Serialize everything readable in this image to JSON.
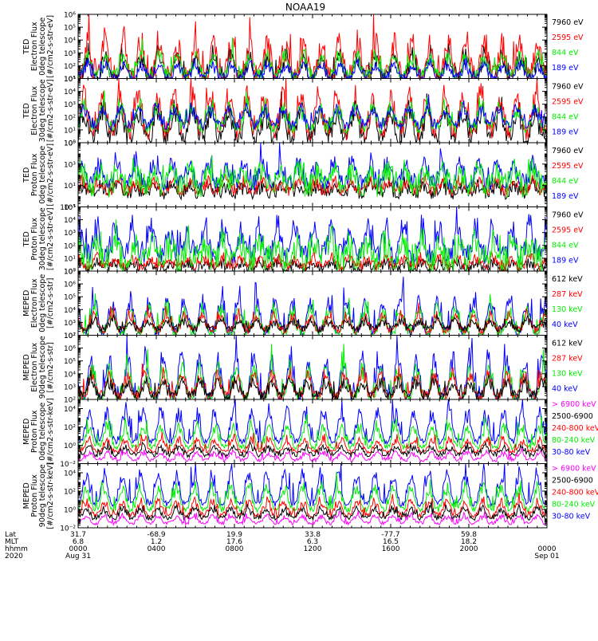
{
  "title": "NOAA19",
  "colors": {
    "black": "#000000",
    "red": "#ff0000",
    "green": "#00ee00",
    "blue": "#0000ff",
    "magenta": "#ff00ff"
  },
  "chart_data": [
    {
      "type": "line",
      "ylabel": [
        "TED",
        "Electron Flux",
        "0deg telescope",
        "[#/cm2-s-str-eV]"
      ],
      "ylog": [
        1,
        6
      ],
      "ticks": [
        {
          "e": 1,
          "label": "10¹"
        },
        {
          "e": 2,
          "label": "10²"
        },
        {
          "e": 3,
          "label": "10³"
        },
        {
          "e": 4,
          "label": "10⁴"
        },
        {
          "e": 5,
          "label": "10⁵"
        },
        {
          "e": 6,
          "label": "10⁶"
        }
      ],
      "legend": [
        {
          "text": "7960 eV",
          "color": "black"
        },
        {
          "text": "2595 eV",
          "color": "red"
        },
        {
          "text": "844 eV",
          "color": "green"
        },
        {
          "text": "189 eV",
          "color": "blue"
        }
      ],
      "series": [
        {
          "name": "7960 eV",
          "color": "black",
          "base": 1.0,
          "amp": 2.2,
          "noise": 0.6
        },
        {
          "name": "2595 eV",
          "color": "red",
          "base": 1.2,
          "amp": 3.2,
          "noise": 0.9
        },
        {
          "name": "844 eV",
          "color": "green",
          "base": 1.3,
          "amp": 1.8,
          "noise": 0.5
        },
        {
          "name": "189 eV",
          "color": "blue",
          "base": 1.1,
          "amp": 1.2,
          "noise": 0.4
        }
      ]
    },
    {
      "type": "line",
      "ylabel": [
        "TED",
        "Electron Flux",
        "30deg telescope",
        "[#/cm2-s-str-eV]"
      ],
      "ylog": [
        0,
        5
      ],
      "ticks": [
        {
          "e": 0,
          "label": "10⁰"
        },
        {
          "e": 1,
          "label": "10¹"
        },
        {
          "e": 2,
          "label": "10²"
        },
        {
          "e": 3,
          "label": "10³"
        },
        {
          "e": 4,
          "label": "10⁴"
        },
        {
          "e": 5,
          "label": "10⁵"
        }
      ],
      "legend": [
        {
          "text": "7960 eV",
          "color": "black"
        },
        {
          "text": "2595 eV",
          "color": "red"
        },
        {
          "text": "844 eV",
          "color": "green"
        },
        {
          "text": "189 eV",
          "color": "blue"
        }
      ],
      "series": [
        {
          "name": "7960 eV",
          "color": "black",
          "base": 0.4,
          "amp": 2.6,
          "noise": 0.7
        },
        {
          "name": "2595 eV",
          "color": "red",
          "base": 1.0,
          "amp": 3.3,
          "noise": 0.8
        },
        {
          "name": "844 eV",
          "color": "green",
          "base": 1.2,
          "amp": 2.0,
          "noise": 0.5
        },
        {
          "name": "189 eV",
          "color": "blue",
          "base": 1.4,
          "amp": 1.6,
          "noise": 0.4
        }
      ]
    },
    {
      "type": "line",
      "ylabel": [
        "TED",
        "Proton Flux",
        "0deg telescope",
        "[#/cm2-s-str-eV]"
      ],
      "ylog": [
        -1,
        5
      ],
      "ticks": [
        {
          "e": -1,
          "label": "10⁻¹"
        },
        {
          "e": 1,
          "label": "10¹"
        },
        {
          "e": 3,
          "label": "10³"
        },
        {
          "e": 5,
          "label": "10⁵"
        }
      ],
      "legend": [
        {
          "text": "7960 eV",
          "color": "black"
        },
        {
          "text": "2595 eV",
          "color": "red"
        },
        {
          "text": "844 eV",
          "color": "green"
        },
        {
          "text": "189 eV",
          "color": "blue"
        }
      ],
      "series": [
        {
          "name": "7960 eV",
          "color": "black",
          "base": 0.3,
          "amp": 0.8,
          "noise": 0.6
        },
        {
          "name": "2595 eV",
          "color": "red",
          "base": 0.6,
          "amp": 1.0,
          "noise": 0.6
        },
        {
          "name": "189 eV",
          "color": "blue",
          "base": 1.2,
          "amp": 2.4,
          "noise": 0.8
        },
        {
          "name": "844 eV",
          "color": "green",
          "base": 1.0,
          "amp": 1.8,
          "noise": 1.2
        }
      ]
    },
    {
      "type": "line",
      "ylabel": [
        "TED",
        "Proton Flux",
        "30deg telescope",
        "[#/cm2-s-str-eV]"
      ],
      "ylog": [
        0,
        5
      ],
      "ticks": [
        {
          "e": 0,
          "label": "10⁰"
        },
        {
          "e": 1,
          "label": "10¹"
        },
        {
          "e": 2,
          "label": "10²"
        },
        {
          "e": 3,
          "label": "10³"
        },
        {
          "e": 4,
          "label": "10⁴"
        },
        {
          "e": 5,
          "label": "10⁵"
        }
      ],
      "legend": [
        {
          "text": "7960 eV",
          "color": "black"
        },
        {
          "text": "2595 eV",
          "color": "red"
        },
        {
          "text": "844 eV",
          "color": "green"
        },
        {
          "text": "189 eV",
          "color": "blue"
        }
      ],
      "series": [
        {
          "name": "7960 eV",
          "color": "black",
          "base": 0.2,
          "amp": 0.6,
          "noise": 0.4
        },
        {
          "name": "2595 eV",
          "color": "red",
          "base": 0.4,
          "amp": 0.8,
          "noise": 0.4
        },
        {
          "name": "189 eV",
          "color": "blue",
          "base": 1.3,
          "amp": 2.6,
          "noise": 0.8
        },
        {
          "name": "844 eV",
          "color": "green",
          "base": 0.9,
          "amp": 1.6,
          "noise": 1.2
        }
      ]
    },
    {
      "type": "line",
      "ylabel": [
        "MEPED",
        "Electron Flux",
        "0deg telescope",
        "[#/cm2-s-str]"
      ],
      "ylog": [
        2,
        7
      ],
      "ticks": [
        {
          "e": 2,
          "label": "10²"
        },
        {
          "e": 3,
          "label": "10³"
        },
        {
          "e": 4,
          "label": "10⁴"
        },
        {
          "e": 5,
          "label": "10⁵"
        },
        {
          "e": 6,
          "label": "10⁶"
        },
        {
          "e": 7,
          "label": "10⁷"
        }
      ],
      "legend": [
        {
          "text": "612 keV",
          "color": "black"
        },
        {
          "text": "287 keV",
          "color": "red"
        },
        {
          "text": "130 keV",
          "color": "green"
        },
        {
          "text": "40 keV",
          "color": "blue"
        }
      ],
      "series": [
        {
          "name": "40 keV",
          "color": "blue",
          "base": 2.3,
          "amp": 3.0,
          "noise": 0.4
        },
        {
          "name": "130 keV",
          "color": "green",
          "base": 2.2,
          "amp": 2.2,
          "noise": 0.4
        },
        {
          "name": "287 keV",
          "color": "red",
          "base": 2.4,
          "amp": 1.4,
          "noise": 0.3
        },
        {
          "name": "612 keV",
          "color": "black",
          "base": 2.5,
          "amp": 0.8,
          "noise": 0.3
        }
      ]
    },
    {
      "type": "line",
      "ylabel": [
        "MEPED",
        "Electron Flux",
        "90deg telescope",
        "[#/cm2-s-str]"
      ],
      "ylog": [
        2,
        7
      ],
      "ticks": [
        {
          "e": 2,
          "label": "10²"
        },
        {
          "e": 3,
          "label": "10³"
        },
        {
          "e": 4,
          "label": "10⁴"
        },
        {
          "e": 5,
          "label": "10⁵"
        },
        {
          "e": 6,
          "label": "10⁶"
        },
        {
          "e": 7,
          "label": "10⁷"
        }
      ],
      "legend": [
        {
          "text": "612 keV",
          "color": "black"
        },
        {
          "text": "287 keV",
          "color": "red"
        },
        {
          "text": "130 keV",
          "color": "green"
        },
        {
          "text": "40 keV",
          "color": "blue"
        }
      ],
      "series": [
        {
          "name": "40 keV",
          "color": "blue",
          "base": 2.2,
          "amp": 3.6,
          "noise": 0.4
        },
        {
          "name": "130 keV",
          "color": "green",
          "base": 2.1,
          "amp": 2.8,
          "noise": 0.4
        },
        {
          "name": "287 keV",
          "color": "red",
          "base": 2.3,
          "amp": 2.0,
          "noise": 0.4
        },
        {
          "name": "612 keV",
          "color": "black",
          "base": 2.3,
          "amp": 1.3,
          "noise": 0.4
        }
      ]
    },
    {
      "type": "line",
      "ylabel": [
        "MEPED",
        "Proton Flux",
        "0deg telescope",
        "[#/cm2-s-str-keV]"
      ],
      "ylog": [
        -2,
        5
      ],
      "ticks": [
        {
          "e": -2,
          "label": "10⁻²"
        },
        {
          "e": 0,
          "label": "10⁰"
        },
        {
          "e": 2,
          "label": "10²"
        },
        {
          "e": 4,
          "label": "10⁴"
        }
      ],
      "legend": [
        {
          "text": "> 6900 keV",
          "color": "magenta"
        },
        {
          "text": "2500-6900",
          "color": "black"
        },
        {
          "text": "240-800 keV",
          "color": "red"
        },
        {
          "text": "80-240 keV",
          "color": "green"
        },
        {
          "text": "30-80 keV",
          "color": "blue"
        }
      ],
      "series": [
        {
          "name": "30-80 keV",
          "color": "blue",
          "base": 0.4,
          "amp": 4.0,
          "noise": 0.3
        },
        {
          "name": "80-240 keV",
          "color": "green",
          "base": -0.2,
          "amp": 2.8,
          "noise": 0.3
        },
        {
          "name": "240-800 keV",
          "color": "red",
          "base": -0.7,
          "amp": 1.6,
          "noise": 0.2
        },
        {
          "name": "2500-6900",
          "color": "black",
          "base": -1.0,
          "amp": 1.0,
          "noise": 0.3
        },
        {
          "name": "> 6900 keV",
          "color": "magenta",
          "base": -1.6,
          "amp": 1.0,
          "noise": 0.2
        }
      ]
    },
    {
      "type": "line",
      "ylabel": [
        "MEPED",
        "Proton Flux",
        "90deg telescope",
        "[#/cm2-s-str-keV]"
      ],
      "ylog": [
        -2,
        5
      ],
      "ticks": [
        {
          "e": -2,
          "label": "10⁻²"
        },
        {
          "e": 0,
          "label": "10⁰"
        },
        {
          "e": 2,
          "label": "10²"
        },
        {
          "e": 4,
          "label": "10⁴"
        }
      ],
      "legend": [
        {
          "text": "> 6900 keV",
          "color": "magenta"
        },
        {
          "text": "2500-6900",
          "color": "black"
        },
        {
          "text": "240-800 keV",
          "color": "red"
        },
        {
          "text": "80-240 keV",
          "color": "green"
        },
        {
          "text": "30-80 keV",
          "color": "blue"
        }
      ],
      "series": [
        {
          "name": "30-80 keV",
          "color": "blue",
          "base": 0.6,
          "amp": 4.0,
          "noise": 0.3
        },
        {
          "name": "80-240 keV",
          "color": "green",
          "base": 0.0,
          "amp": 3.0,
          "noise": 0.3
        },
        {
          "name": "240-800 keV",
          "color": "red",
          "base": -0.6,
          "amp": 1.8,
          "noise": 0.3
        },
        {
          "name": "2500-6900",
          "color": "black",
          "base": -0.9,
          "amp": 1.2,
          "noise": 0.3
        },
        {
          "name": "> 6900 keV",
          "color": "magenta",
          "base": -1.5,
          "amp": 1.0,
          "noise": 0.2
        }
      ]
    }
  ],
  "xaxis": {
    "row_labels": [
      "Lat",
      "MLT",
      "hhmm",
      "2020"
    ],
    "ticks": [
      {
        "lat": "31.7",
        "mlt": "6.8",
        "hhmm": "0000",
        "date": "Aug 31",
        "frac": 0.0
      },
      {
        "lat": "-68.9",
        "mlt": "1.2",
        "hhmm": "0400",
        "date": "",
        "frac": 0.1667
      },
      {
        "lat": "19.9",
        "mlt": "17.6",
        "hhmm": "0800",
        "date": "",
        "frac": 0.3333
      },
      {
        "lat": "33.8",
        "mlt": "6.3",
        "hhmm": "1200",
        "date": "",
        "frac": 0.5
      },
      {
        "lat": "-77.7",
        "mlt": "16.5",
        "hhmm": "1600",
        "date": "",
        "frac": 0.6667
      },
      {
        "lat": "59.8",
        "mlt": "18.2",
        "hhmm": "2000",
        "date": "",
        "frac": 0.8333
      },
      {
        "lat": "",
        "mlt": "",
        "hhmm": "0000",
        "date": "Sep 01",
        "frac": 1.0
      }
    ]
  }
}
